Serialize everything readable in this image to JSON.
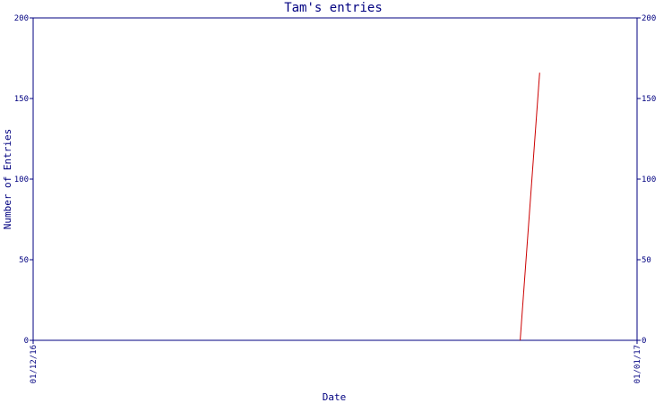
{
  "colors": {
    "axis": "#000080",
    "series": "#cc0000",
    "background": "#ffffff"
  },
  "chart_data": {
    "type": "line",
    "title": "Tam's entries",
    "xlabel": "Date",
    "ylabel": "Number of Entries",
    "x_ticks": [
      "01/12/16",
      "01/01/17"
    ],
    "xlim": [
      "2016-12-01",
      "2017-01-01"
    ],
    "ylim": [
      0,
      200
    ],
    "y_ticks": [
      0,
      50,
      100,
      150,
      200
    ],
    "y_ticks_right": [
      0,
      50,
      100,
      150,
      200
    ],
    "grid": false,
    "series": [
      {
        "color": "#cc0000",
        "points": [
          {
            "x": "2016-12-26",
            "y": 0
          },
          {
            "x": "2016-12-27",
            "y": 166
          }
        ]
      }
    ]
  }
}
